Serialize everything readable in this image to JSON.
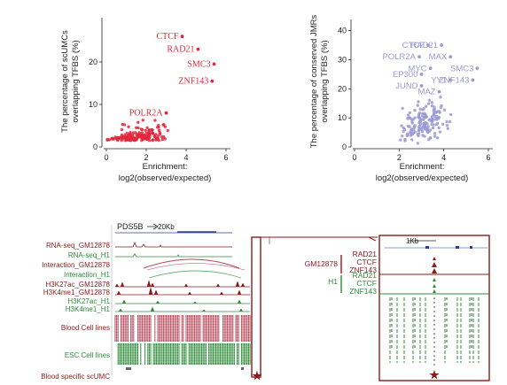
{
  "colors": {
    "red": "#e0283c",
    "dark_red": "#8b1a1a",
    "lav": "#9b9bd3",
    "green": "#2e8b3a",
    "track_red": "#b5485a",
    "axis": "#222222"
  },
  "left_chart": {
    "ylabel_1": "The percentage of scUMCs",
    "ylabel_2": "overlapping TFBS (%)",
    "xlabel_1": "Enrichment:",
    "xlabel_2": "log2(observed/expected)",
    "x_ticks": [
      "0",
      "2",
      "4",
      "6"
    ],
    "y_ticks": [
      "0",
      "10",
      "20"
    ]
  },
  "right_chart": {
    "ylabel_1": "The percentage of conserved JMRs",
    "ylabel_2": "overlapping TFBS (%)",
    "xlabel_1": "Enrichment:",
    "xlabel_2": "log2(observed/expected)",
    "x_ticks": [
      "0",
      "2",
      "4",
      "6"
    ],
    "y_ticks": [
      "0",
      "10",
      "20",
      "30",
      "40"
    ]
  },
  "chart_data": [
    {
      "type": "scatter",
      "xlabel": "Enrichment: log2(observed/expected)",
      "ylabel": "The percentage of scUMCs overlapping TFBS (%)",
      "xlim": [
        0,
        6
      ],
      "ylim": [
        0,
        30
      ],
      "labeled_points": [
        {
          "label": "CTCF",
          "x": 3.8,
          "y": 26
        },
        {
          "label": "RAD21",
          "x": 4.6,
          "y": 23
        },
        {
          "label": "SMC3",
          "x": 5.4,
          "y": 19.5
        },
        {
          "label": "ZNF143",
          "x": 5.3,
          "y": 15.5
        },
        {
          "label": "POLR2A",
          "x": 3.0,
          "y": 8
        }
      ],
      "cloud": {
        "x_center": 1.6,
        "x_spread": 1.2,
        "y_center": 1.5,
        "y_spread": 1.5,
        "count": 170
      }
    },
    {
      "type": "scatter",
      "xlabel": "Enrichment: log2(observed/expected)",
      "ylabel": "The percentage of conserved JMRs overlapping TFBS (%)",
      "xlim": [
        0,
        6
      ],
      "ylim": [
        0,
        42
      ],
      "labeled_points": [
        {
          "label": "CTCF",
          "x": 3.3,
          "y": 35
        },
        {
          "label": "RAD21",
          "x": 3.9,
          "y": 35
        },
        {
          "label": "POLR2A",
          "x": 2.9,
          "y": 31
        },
        {
          "label": "MAX",
          "x": 4.3,
          "y": 31
        },
        {
          "label": "MYC",
          "x": 3.4,
          "y": 27
        },
        {
          "label": "SMC3",
          "x": 5.5,
          "y": 27
        },
        {
          "label": "EP300",
          "x": 3.0,
          "y": 25
        },
        {
          "label": "YY1",
          "x": 4.3,
          "y": 23
        },
        {
          "label": "ZNF143",
          "x": 5.3,
          "y": 23
        },
        {
          "label": "JUND",
          "x": 3.0,
          "y": 21
        },
        {
          "label": "MAZ",
          "x": 3.8,
          "y": 19
        }
      ],
      "cloud": {
        "x_center": 3.1,
        "x_spread": 0.9,
        "y_center": 8,
        "y_spread": 6,
        "count": 160
      }
    }
  ],
  "browser": {
    "gene": "PDS5B",
    "scale": "20Kb",
    "tracks": [
      "RNA-seq_GM12878",
      "RNA-seq_H1",
      "Interaction_GM12878",
      "Interaction_H1",
      "H3K27ac_GM12878",
      "H3K4me1_GM12878",
      "H3K27ac_H1",
      "H3K4me1_H1"
    ],
    "blood_label": "Blood Cell lines",
    "esc_label": "ESC Cell lines",
    "scumc_label": "Blood specific scUMC"
  },
  "zoom": {
    "scale": "1Kb",
    "gm_label": "GM12878",
    "h1_label": "H1",
    "gm_tfs": [
      "RAD21",
      "CTCF",
      "ZNF143"
    ],
    "h1_tfs": [
      "RAD21",
      "CTCF",
      "ZNF143"
    ]
  }
}
